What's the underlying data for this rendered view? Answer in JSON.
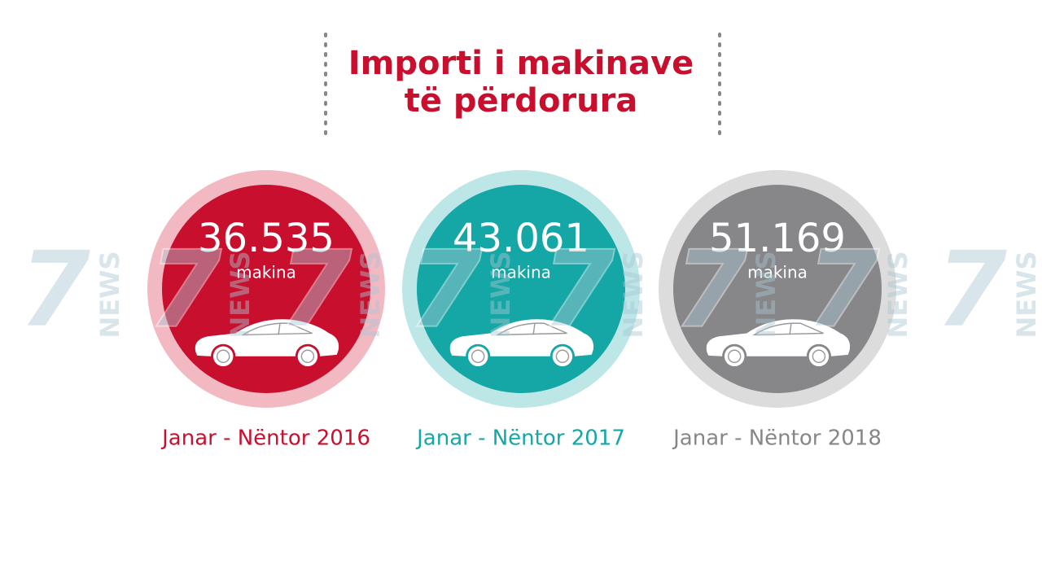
{
  "header": {
    "title_lines": [
      "Importi i makinave",
      "të përdorura"
    ]
  },
  "watermark": {
    "numeral": "7",
    "text": "NEWS"
  },
  "items": [
    {
      "value": "36.535",
      "unit": "makina",
      "period": "Janar - Nëntor 2016"
    },
    {
      "value": "43.061",
      "unit": "makina",
      "period": "Janar - Nëntor 2017"
    },
    {
      "value": "51.169",
      "unit": "makina",
      "period": "Janar - Nëntor 2018"
    }
  ]
}
